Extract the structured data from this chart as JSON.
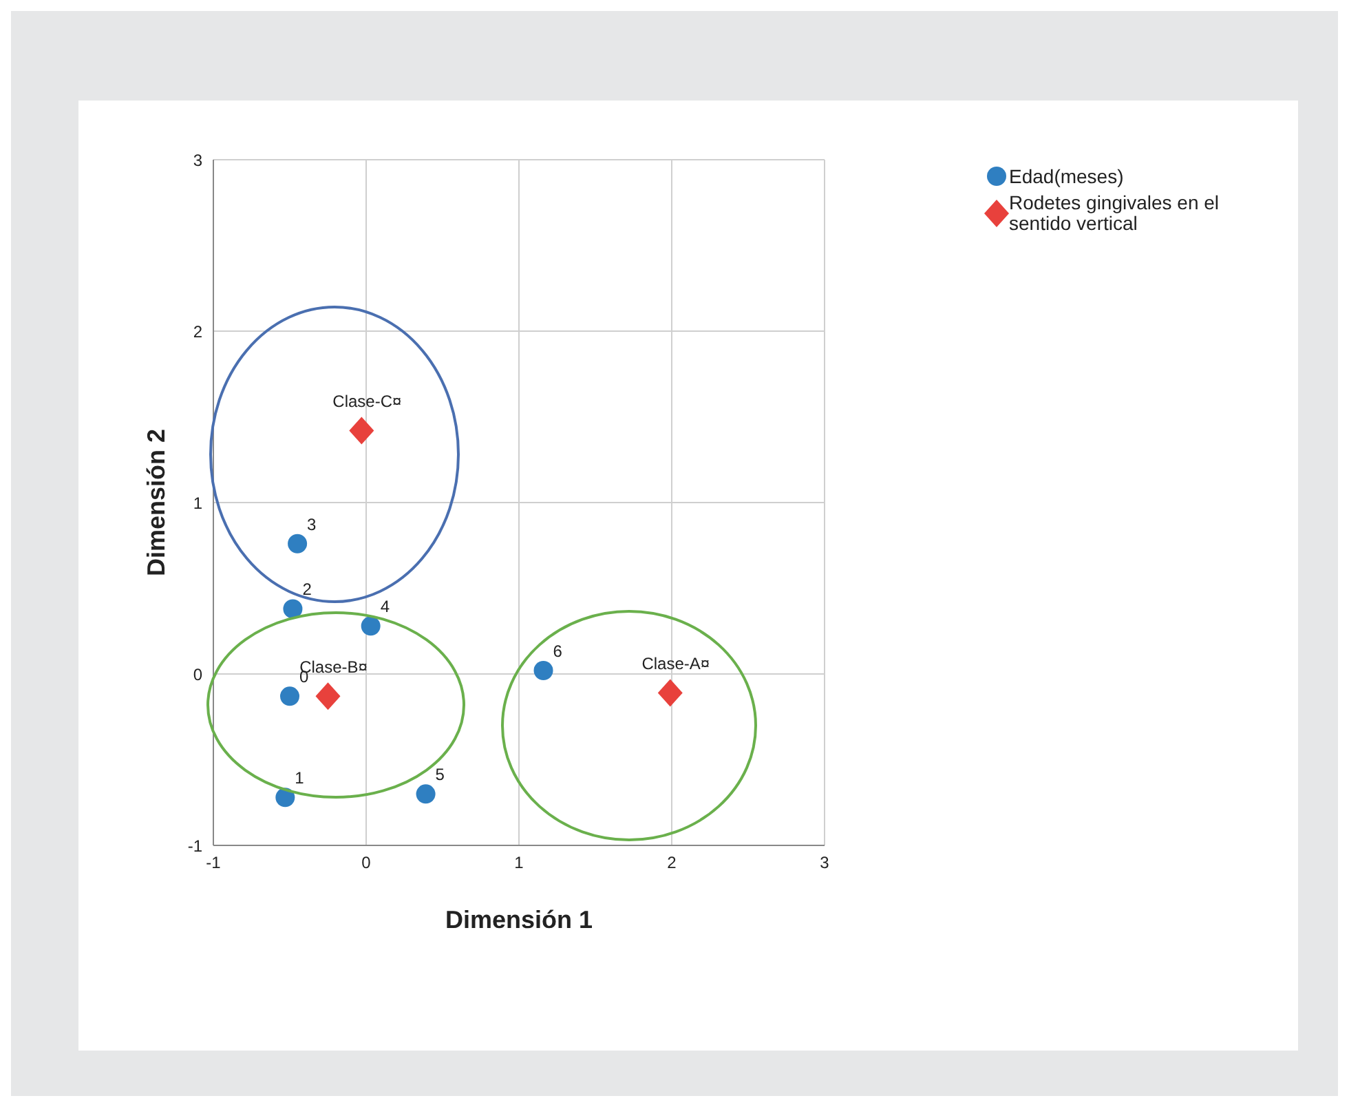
{
  "chart_data": {
    "type": "scatter",
    "xlabel": "Dimensión 1",
    "ylabel": "Dimensión 2",
    "xlim": [
      -1,
      3
    ],
    "ylim": [
      -1,
      3
    ],
    "xticks": [
      -1,
      0,
      1,
      2,
      3
    ],
    "yticks": [
      -1,
      0,
      1,
      2,
      3
    ],
    "grid": true,
    "legend": "top right",
    "series": [
      {
        "name": "Edad(meses)",
        "color": "#2f7fc1",
        "marker": "circle",
        "x": [
          -0.5,
          -0.53,
          -0.48,
          -0.45,
          0.03,
          0.39,
          1.16
        ],
        "values": [
          -0.13,
          -0.72,
          0.38,
          0.76,
          0.28,
          -0.7,
          0.02
        ]
      },
      {
        "name": "Rodetes gingivales en el sentido vertical",
        "color": "#e8413c",
        "marker": "diamond",
        "x": [
          1.99,
          -0.25,
          -0.03
        ],
        "values": [
          -0.11,
          -0.13,
          1.42
        ]
      }
    ],
    "annotations": [
      {
        "text": "0",
        "x": -0.5,
        "y": -0.13
      },
      {
        "text": "1",
        "x": -0.53,
        "y": -0.72
      },
      {
        "text": "2",
        "x": -0.48,
        "y": 0.38
      },
      {
        "text": "3",
        "x": -0.45,
        "y": 0.76
      },
      {
        "text": "4",
        "x": 0.03,
        "y": 0.28
      },
      {
        "text": "5",
        "x": 0.39,
        "y": -0.7
      },
      {
        "text": "6",
        "x": 1.16,
        "y": 0.02
      },
      {
        "text": "Clase-A¤",
        "x": 1.99,
        "y": -0.11
      },
      {
        "text": "Clase-B¤",
        "x": -0.25,
        "y": -0.13
      },
      {
        "text": "Clase-C¤",
        "x": -0.03,
        "y": 1.42
      }
    ]
  }
}
